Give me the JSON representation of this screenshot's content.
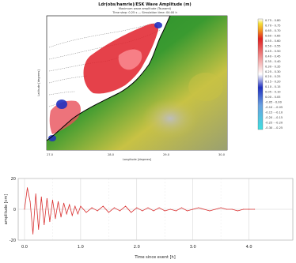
{
  "map": {
    "title": "Ldr(obs/hamrie)/ESK Wave Amplitude (m)",
    "subtitle_line1": "Maximum wave amplitude (Tsunami)",
    "subtitle_line2": "Time step: 0.25 s   —   Simulation time: 04:00 h",
    "ylabel": "Latitude [degrees]",
    "xlabel": "Longitude [degrees]",
    "xticks": [
      "27.0",
      "28.0",
      "29.0",
      "30.0"
    ],
    "yticks": [],
    "colorbar_labels": [
      "0.75 - 0.80",
      "0.70 - 0.75",
      "0.65 - 0.70",
      "0.60 - 0.65",
      "0.55 - 0.60",
      "0.50 - 0.55",
      "0.45 - 0.50",
      "0.40 - 0.45",
      "0.35 - 0.40",
      "0.30 - 0.35",
      "0.25 - 0.30",
      "0.20 - 0.25",
      "0.15 - 0.20",
      "0.10 - 0.15",
      "0.05 - 0.10",
      "0.00 - 0.05",
      "-0.05 - 0.00",
      "-0.10 - -0.05",
      "-0.15 - -0.10",
      "-0.20 - -0.15",
      "-0.25 - -0.20",
      "-0.30 - -0.25"
    ],
    "colors": {
      "land_low": "#1f8a2a",
      "land_mid": "#c8c244",
      "land_high": "#b0b0b0",
      "sea": "#ffffff",
      "wave_pos": "#e0202a",
      "wave_neg": "#2030c0",
      "coast": "#000000"
    }
  },
  "chart_data": {
    "type": "line",
    "title": "",
    "xlabel": "Time since event [h]",
    "ylabel": "amplitude [cm]",
    "xlim": [
      0,
      4.5
    ],
    "ylim": [
      -20,
      20
    ],
    "xticks": [
      "0.0",
      "1.0",
      "2.0",
      "3.0",
      "4.0"
    ],
    "yticks": [
      "20",
      "0",
      "-20"
    ],
    "grid": true,
    "color": "#d93030",
    "x": [
      0.0,
      0.05,
      0.1,
      0.15,
      0.2,
      0.25,
      0.3,
      0.35,
      0.4,
      0.45,
      0.5,
      0.55,
      0.6,
      0.65,
      0.7,
      0.75,
      0.8,
      0.85,
      0.9,
      0.95,
      1.0,
      1.1,
      1.2,
      1.3,
      1.4,
      1.5,
      1.6,
      1.7,
      1.8,
      1.9,
      2.0,
      2.1,
      2.2,
      2.3,
      2.4,
      2.5,
      2.6,
      2.7,
      2.8,
      2.9,
      3.0,
      3.1,
      3.2,
      3.3,
      3.4,
      3.5,
      3.6,
      3.7,
      3.8,
      3.9,
      4.0,
      4.1
    ],
    "y": [
      0,
      14,
      5,
      -16,
      10,
      -13,
      8,
      -10,
      7,
      -8,
      6,
      -6,
      5,
      -5,
      4,
      -3,
      3,
      -4,
      2,
      -3,
      2,
      -2,
      1,
      -1,
      2,
      -2,
      1,
      -1,
      2,
      -2,
      1,
      -1,
      1,
      -1,
      1,
      -1,
      0,
      -1,
      1,
      -1,
      0,
      1,
      0,
      -1,
      0,
      1,
      0,
      0,
      -1,
      0,
      0,
      0
    ]
  }
}
